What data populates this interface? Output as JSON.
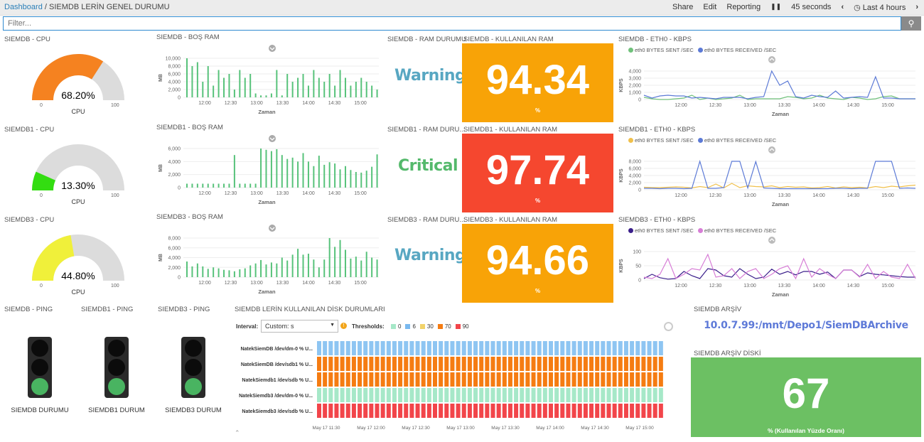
{
  "breadcrumb": {
    "root": "Dashboard",
    "separator": "/",
    "current": "SIEMDB LERİN GENEL DURUMU"
  },
  "menu": {
    "share": "Share",
    "edit": "Edit",
    "reporting": "Reporting",
    "pause": "❚❚",
    "interval": "45 seconds",
    "prev": "‹",
    "time": "Last 4 hours",
    "next": "›"
  },
  "filter": {
    "placeholder": "Filter..."
  },
  "cpu": [
    {
      "title": "SIEMDB - CPU",
      "value": "68.20%",
      "pct": 68.2,
      "color": "#f58220",
      "label": "CPU",
      "min": "0",
      "max": "100"
    },
    {
      "title": "SIEMDB1 - CPU",
      "value": "13.30%",
      "pct": 13.3,
      "color": "#33dd11",
      "label": "CPU",
      "min": "0",
      "max": "100"
    },
    {
      "title": "SIEMDB3 - CPU",
      "value": "44.80%",
      "pct": 44.8,
      "color": "#f0f03a",
      "label": "CPU",
      "min": "0",
      "max": "100"
    }
  ],
  "ram": [
    {
      "title": "SIEMDB - BOŞ RAM",
      "ylabel": "MB",
      "xlabel": "Zaman",
      "yticks": [
        "10,000",
        "8,000",
        "6,000",
        "4,000",
        "2,000",
        "0"
      ],
      "xticks": [
        "12:00",
        "12:30",
        "13:00",
        "13:30",
        "14:00",
        "14:30",
        "15:00"
      ],
      "values": [
        10,
        8,
        9,
        4,
        8,
        3,
        7,
        5,
        6,
        2,
        7,
        5,
        6,
        1,
        0.5,
        0.5,
        1,
        7,
        0.5,
        6,
        4,
        5,
        6,
        3,
        7,
        5,
        4,
        6,
        3,
        7,
        5,
        3,
        4,
        5,
        4,
        3,
        2
      ]
    },
    {
      "title": "SIEMDB1 - BOŞ RAM",
      "ylabel": "MB",
      "xlabel": "Zaman",
      "yticks": [
        "6,000",
        "4,000",
        "2,000",
        "0"
      ],
      "xticks": [
        "12:00",
        "12:30",
        "13:00",
        "13:30",
        "14:00",
        "14:30",
        "15:00"
      ],
      "values": [
        0.6,
        0.6,
        0.6,
        0.6,
        0.6,
        0.6,
        0.6,
        0.6,
        0.6,
        5,
        0.6,
        0.6,
        0.6,
        0.6,
        6.2,
        5.8,
        5.6,
        5.9,
        5,
        4.4,
        4.6,
        4,
        5.3,
        4,
        3.3,
        4.9,
        3.5,
        3.9,
        3.7,
        2.8,
        3.3,
        2.7,
        2.4,
        2.3,
        2.6,
        3.2,
        5.1
      ]
    },
    {
      "title": "SIEMDB3 - BOŞ RAM",
      "ylabel": "MB",
      "xlabel": "Zaman",
      "yticks": [
        "8,000",
        "6,000",
        "4,000",
        "2,000",
        "0"
      ],
      "xticks": [
        "12:00",
        "12:30",
        "13:00",
        "13:30",
        "14:00",
        "14:30",
        "15:00"
      ],
      "values": [
        3.2,
        2.2,
        2.8,
        2.2,
        1.7,
        2,
        1.8,
        1.5,
        1.4,
        1.2,
        1.6,
        1.8,
        2.4,
        2.8,
        3.5,
        2.6,
        3,
        2.8,
        4,
        3.4,
        4.6,
        5.8,
        4.6,
        4.8,
        3.6,
        2,
        3.6,
        8.4,
        6.2,
        7.6,
        5.6,
        3.8,
        4.2,
        3.4,
        5.2,
        4,
        3.6
      ]
    }
  ],
  "ramstatus": [
    {
      "title": "SIEMDB - RAM DURUMU",
      "text": "Warning",
      "color": "#58a7c2"
    },
    {
      "title": "SIEMDB1 - RAM DURU...",
      "text": "Critical",
      "color": "#54b96b"
    },
    {
      "title": "SIEMDB3 - RAM DURU...",
      "text": "Warning",
      "color": "#58a7c2"
    }
  ],
  "usedram": [
    {
      "title": "SIEMDB - KULLANILAN RAM",
      "value": "94.34",
      "unit": "%",
      "bg": "#f8a307"
    },
    {
      "title": "SIEMDB1 - KULLANILAN RAM",
      "value": "97.74",
      "unit": "%",
      "bg": "#f5472f"
    },
    {
      "title": "SIEMDB3 - KULLANILAN RAM",
      "value": "94.66",
      "unit": "%",
      "bg": "#f8a307"
    }
  ],
  "eth": [
    {
      "title": "SIEMDB - ETH0 - KBPS",
      "ylabel": "KBPS",
      "xlabel": "Zaman",
      "yticks": [
        "4,000",
        "3,000",
        "2,000",
        "1,000",
        "0"
      ],
      "xticks": [
        "12:00",
        "12:30",
        "13:00",
        "13:30",
        "14:00",
        "14:30",
        "15:00"
      ],
      "series": [
        {
          "name": "eth0 BYTES SENT /SEC",
          "color": "#70c17b",
          "values": [
            0.3,
            0.1,
            0,
            0,
            0.1,
            0.2,
            0.6,
            0,
            0.2,
            0,
            0.1,
            0.2,
            0.6,
            0,
            0.1,
            0.1,
            0.1,
            0.1,
            0.4,
            0.3,
            0.1,
            0.2,
            0.6,
            0.2,
            0.1,
            0,
            0.3,
            0.2,
            0,
            0.1,
            0.4,
            0.5,
            0.1,
            0.1,
            0.1
          ]
        },
        {
          "name": "eth0 BYTES RECEIVED /SEC",
          "color": "#5c7ad6",
          "values": [
            0.6,
            0.2,
            0.5,
            0.6,
            0.5,
            0.5,
            0.2,
            0.3,
            0.2,
            0.1,
            0.3,
            0.3,
            0.3,
            0.1,
            0.3,
            0.4,
            4.1,
            2,
            2.6,
            0.4,
            0.2,
            0.6,
            0.4,
            0.3,
            1.2,
            0.2,
            0.3,
            0.4,
            0.3,
            3.2,
            0.2,
            0.2,
            0.1,
            0.1,
            0.1
          ]
        }
      ]
    },
    {
      "title": "SIEMDB1 - ETH0 - KBPS",
      "ylabel": "KBPS",
      "xlabel": "Zaman",
      "yticks": [
        "8,000",
        "6,000",
        "4,000",
        "2,000",
        "0"
      ],
      "xticks": [
        "12:00",
        "12:30",
        "13:00",
        "13:30",
        "14:00",
        "14:30",
        "15:00"
      ],
      "series": [
        {
          "name": "eth0 BYTES SENT /SEC",
          "color": "#f0c04b",
          "values": [
            0.7,
            0.6,
            0.6,
            0.7,
            0.8,
            0.7,
            0.5,
            0.9,
            0.6,
            1.6,
            0.5,
            1.8,
            0.6,
            1.1,
            0.9,
            0.8,
            1.1,
            0.6,
            0.9,
            0.7,
            0.8,
            0.5,
            0.6,
            0.9,
            0.5,
            0.8,
            0.6,
            0.7,
            0.5,
            0.9,
            0.6,
            1,
            0.8,
            1.1,
            1.3
          ]
        },
        {
          "name": "eth0 BYTES RECEIVED /SEC",
          "color": "#5c7ad6",
          "values": [
            0.4,
            0.4,
            0.3,
            0.4,
            0.4,
            0.3,
            0.4,
            8.4,
            0.4,
            0.4,
            0.6,
            8.2,
            8.2,
            0.5,
            7.9,
            0.5,
            0.4,
            0.3,
            0.3,
            0.3,
            0.3,
            0.3,
            0.3,
            0.3,
            0.4,
            0.4,
            0.3,
            0.4,
            0.4,
            8,
            8,
            8,
            0.4,
            0.5,
            0.4
          ]
        }
      ]
    },
    {
      "title": "SIEMDB3 - ETH0 - KBPS",
      "ylabel": "KBPS",
      "xlabel": "Zaman",
      "yticks": [
        "100",
        "50",
        "0"
      ],
      "xticks": [
        "12:00",
        "12:30",
        "13:00",
        "13:30",
        "14:00",
        "14:30",
        "15:00"
      ],
      "series": [
        {
          "name": "eth0 BYTES SENT /SEC",
          "color": "#3a1e8a",
          "values": [
            5,
            20,
            8,
            3,
            5,
            30,
            15,
            5,
            40,
            35,
            15,
            10,
            40,
            20,
            5,
            10,
            38,
            20,
            30,
            18,
            30,
            30,
            20,
            28,
            5,
            35,
            35,
            12,
            25,
            20,
            18,
            15,
            12,
            10,
            10
          ]
        },
        {
          "name": "eth0 BYTES RECEIVED /SEC",
          "color": "#d77ed6",
          "values": [
            10,
            5,
            20,
            75,
            5,
            20,
            40,
            35,
            90,
            10,
            15,
            40,
            5,
            30,
            40,
            5,
            20,
            40,
            50,
            5,
            75,
            10,
            40,
            20,
            5,
            35,
            35,
            10,
            55,
            5,
            30,
            10,
            5,
            55,
            5
          ]
        }
      ]
    }
  ],
  "ping": [
    {
      "title": "SIEMDB - PING",
      "label": "SIEMDB DURUMU"
    },
    {
      "title": "SIEMDB1 - PING",
      "label": "SIEMDB1 DURUM"
    },
    {
      "title": "SIEMDB3 - PING",
      "label": "SIEMDB3 DURUM"
    }
  ],
  "disk": {
    "title": "SIEMDB LERİN KULLANILAN DİSK DURUMLARI",
    "interval_label": "Interval:",
    "interval_value": "Custom: s",
    "thresholds_label": "Thresholds:",
    "thresholds": [
      {
        "v": "0",
        "c": "#a6e8c8"
      },
      {
        "v": "6",
        "c": "#7ab9ef"
      },
      {
        "v": "30",
        "c": "#f2d36a"
      },
      {
        "v": "70",
        "c": "#f57c12"
      },
      {
        "v": "90",
        "c": "#f2454a"
      }
    ],
    "rows": [
      {
        "label": "NatekSiemDB /dev/dm-0 % U...",
        "color": "#8ec5f2"
      },
      {
        "label": "NatekSiemDB /dev/sdb1 % U...",
        "color": "#f57c12"
      },
      {
        "label": "NatekSiemdb1 /dev/sdb % U...",
        "color": "#f57c12"
      },
      {
        "label": "NatekSiemdb3 /dev/dm-0 % U...",
        "color": "#a6e8c8"
      },
      {
        "label": "NatekSiemdb3 /dev/sdb % U...",
        "color": "#f2454a"
      }
    ],
    "xticks": [
      "May 17 11:30",
      "May 17 12:00",
      "May 17 12:30",
      "May 17 13:00",
      "May 17 13:30",
      "May 17 14:00",
      "May 17 14:30",
      "May 17 15:00"
    ]
  },
  "archive": {
    "title": "SIEMDB ARŞİV",
    "path": "10.0.7.99:/mnt/Depo1/SiemDBArchive"
  },
  "archivedisk": {
    "title": "SIEMDB ARŞİV DİSKİ",
    "value": "67",
    "label": "% (Kullanılan Yüzde Oranı)",
    "bg": "#6cc063"
  }
}
